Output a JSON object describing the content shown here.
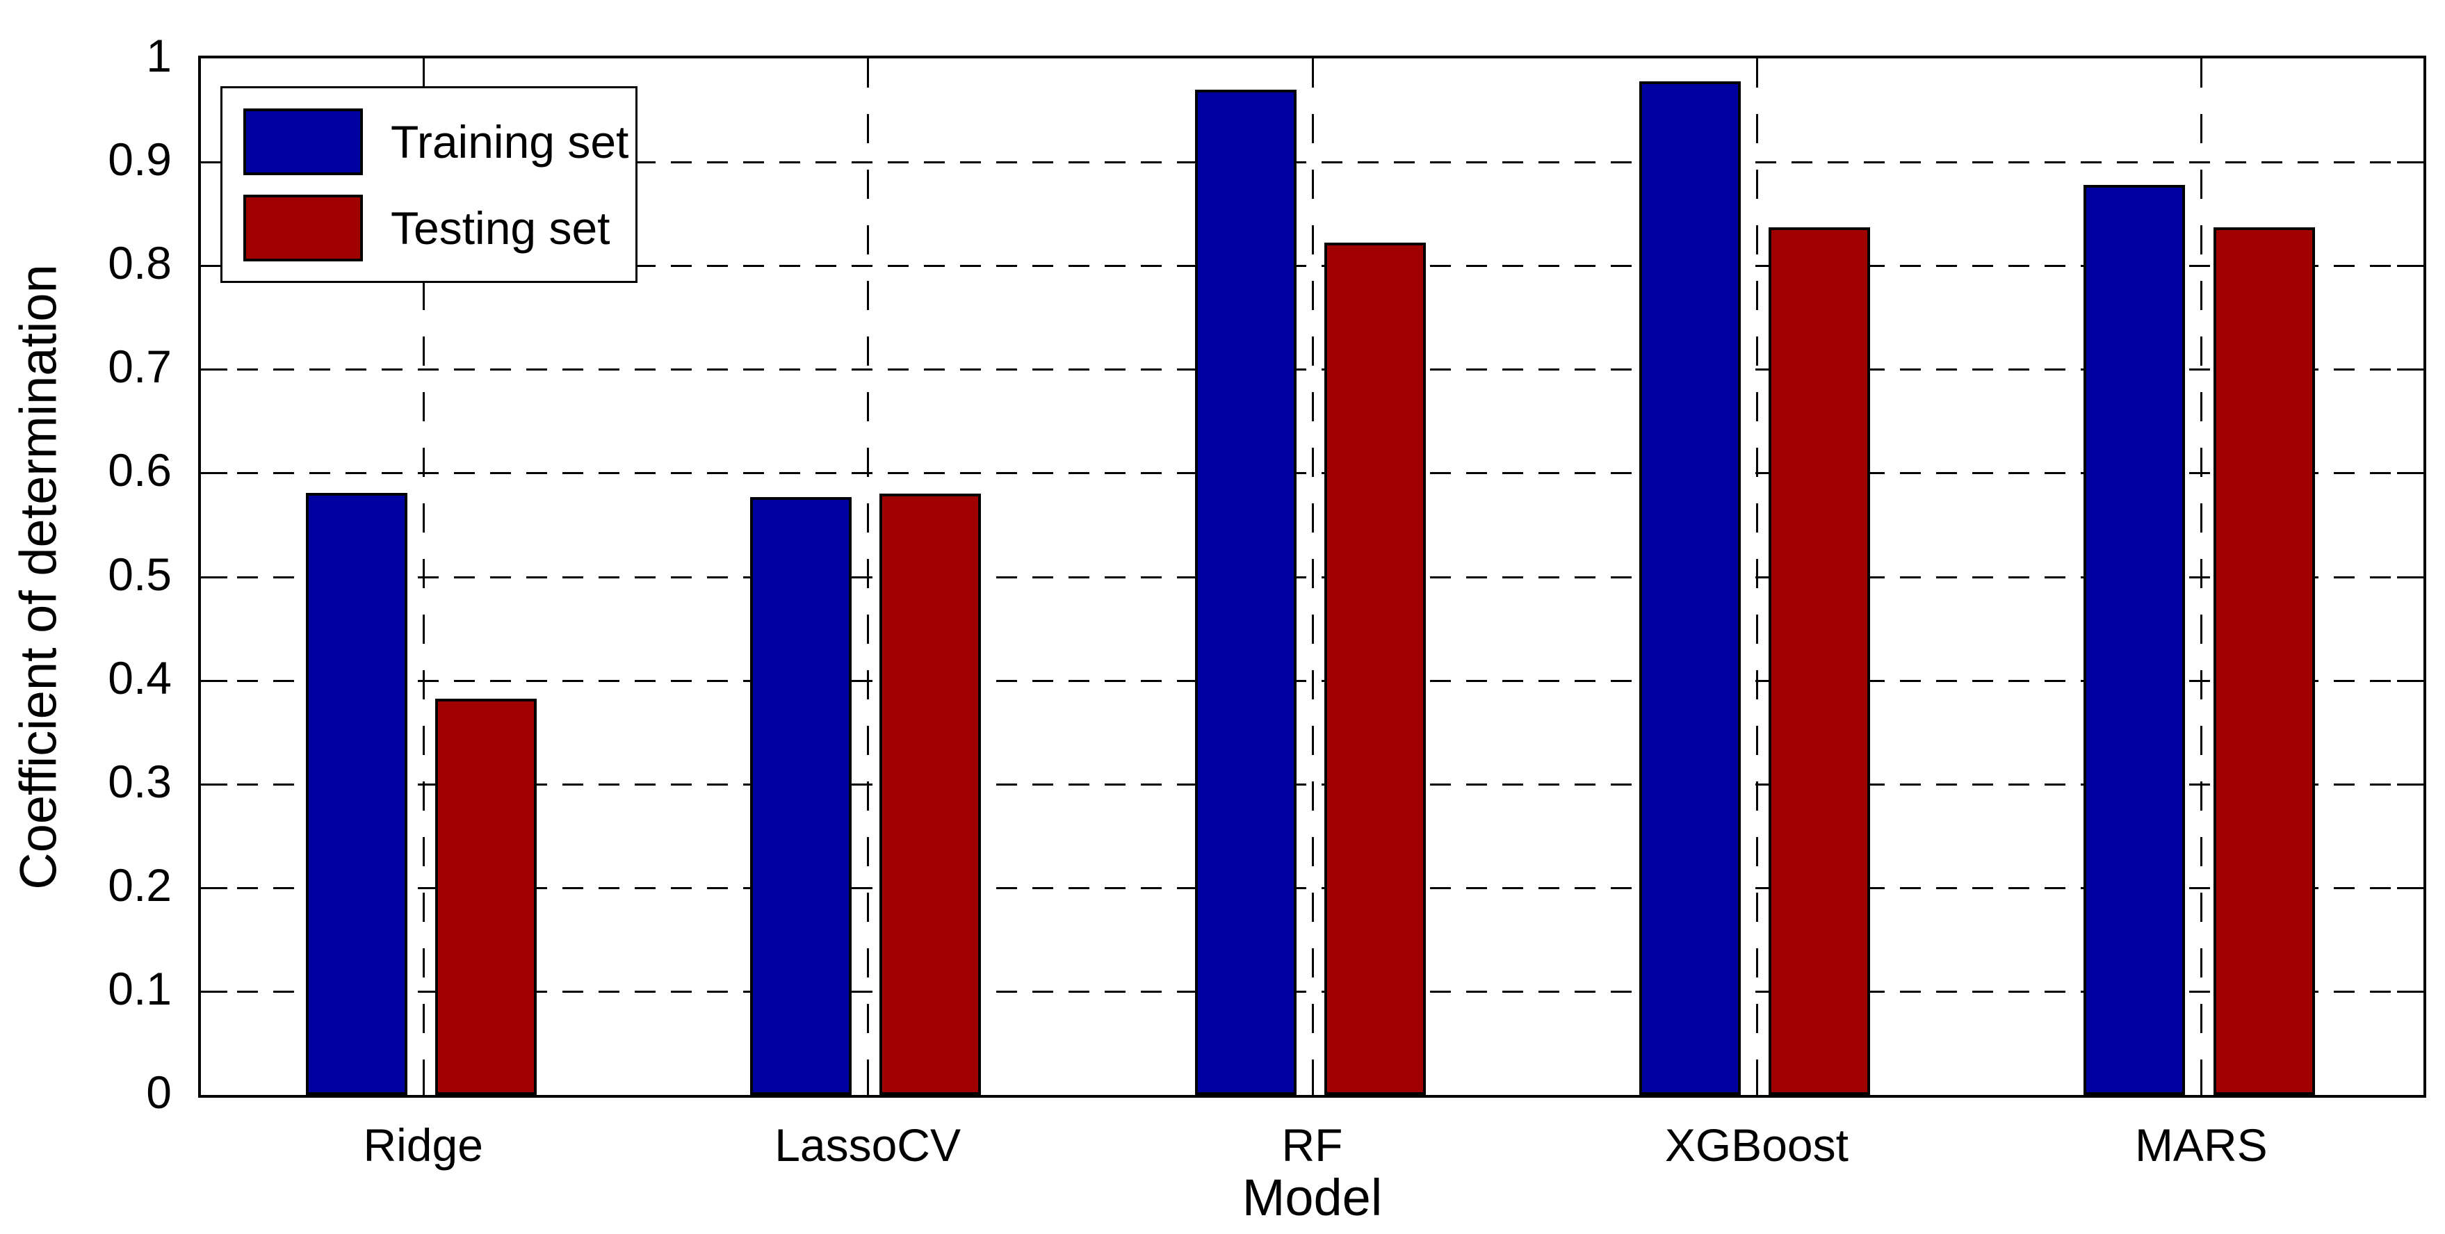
{
  "figure": {
    "background": "#ffffff",
    "line_color": "#000000",
    "ylabel": "Coefficient of determination",
    "xlabel": "Model"
  },
  "legend": {
    "items": [
      {
        "label": "Training set",
        "color": "#0000A0"
      },
      {
        "label": "Testing set",
        "color": "#A00000"
      }
    ]
  },
  "chart_data": {
    "type": "bar",
    "categories": [
      "Ridge",
      "LassoCV",
      "RF",
      "XGBoost",
      "MARS"
    ],
    "series": [
      {
        "name": "Training set",
        "color": "#0000A0",
        "values": [
          0.581,
          0.577,
          0.97,
          0.978,
          0.878
        ]
      },
      {
        "name": "Testing set",
        "color": "#A00000",
        "values": [
          0.382,
          0.58,
          0.822,
          0.837,
          0.837
        ]
      }
    ],
    "title": "",
    "xlabel": "Model",
    "ylabel": "Coefficient of determination",
    "ylim": [
      0,
      1
    ],
    "yticks": [
      0,
      0.1,
      0.2,
      0.3,
      0.4,
      0.5,
      0.6,
      0.7,
      0.8,
      0.9,
      1
    ],
    "ytick_labels": [
      "0",
      "0.1",
      "0.2",
      "0.3",
      "0.4",
      "0.5",
      "0.6",
      "0.7",
      "0.8",
      "0.9",
      "1"
    ],
    "grid": "dashed-both-axes",
    "legend_position": "top-left",
    "bar_outline_color": "#000000"
  }
}
